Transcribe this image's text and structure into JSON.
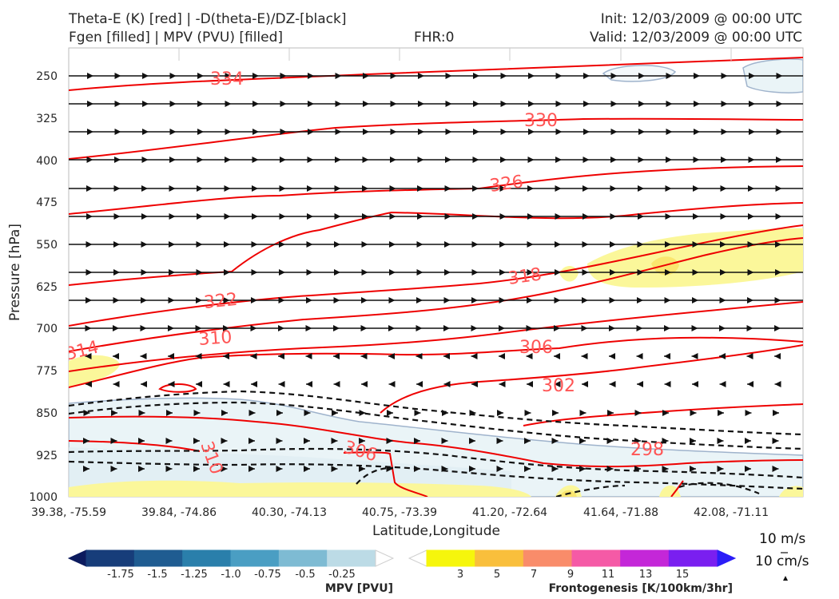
{
  "header": {
    "line1_left": "Theta-E (K) [red] | -D(theta-E)/DZ-[black]",
    "line2_left": "Fgen [filled] | MPV (PVU) [filled]",
    "fhr": "FHR:0",
    "init": "Init: 12/03/2009 @ 00:00 UTC",
    "valid": "Valid: 12/03/2009 @ 00:00 UTC"
  },
  "chart_data": {
    "type": "cross-section",
    "xlabel": "Latitude,Longitude",
    "ylabel": "Pressure [hPa]",
    "ylim": [
      1000,
      200
    ],
    "y_ticks": [
      250,
      325,
      400,
      475,
      550,
      625,
      700,
      775,
      850,
      925,
      1000
    ],
    "x_ticks": [
      "39.38, -75.59",
      "39.84, -74.86",
      "40.30, -74.13",
      "40.75, -73.39",
      "41.20, -72.64",
      "41.64, -71.88",
      "42.08, -71.11"
    ],
    "theta_e_contours": [
      {
        "label": "334",
        "level": 334
      },
      {
        "label": "330",
        "level": 330
      },
      {
        "label": "326",
        "level": 326
      },
      {
        "label": "322",
        "level": 322
      },
      {
        "label": "318",
        "level": 318
      },
      {
        "label": "314",
        "level": 314
      },
      {
        "label": "310",
        "level": 310
      },
      {
        "label": "306",
        "level": 306
      },
      {
        "label": "302",
        "level": 302
      },
      {
        "label": "298",
        "level": 298
      },
      {
        "label": "306",
        "level": 306
      },
      {
        "label": "310",
        "level": 310
      }
    ],
    "wind_reference": {
      "horizontal": "10 m/s",
      "vertical": "10 cm/s"
    },
    "mpv_colorbar": {
      "title": "MPV [PVU]",
      "ticks": [
        "-1.75",
        "-1.5",
        "-1.25",
        "-1.0",
        "-0.75",
        "-0.5",
        "-0.25"
      ],
      "colors": [
        "#0c1b5e",
        "#173d7a",
        "#1f5c91",
        "#2a7fab",
        "#4a9ec3",
        "#7ebbd3",
        "#bcdbe6",
        "#ffffff"
      ]
    },
    "fgen_colorbar": {
      "title": "Frontogenesis [K/100km/3hr]",
      "ticks": [
        "3",
        "5",
        "7",
        "9",
        "11",
        "13",
        "15"
      ],
      "colors": [
        "#ffffff",
        "#f6f60c",
        "#f9bf3c",
        "#f98c6a",
        "#f55aa6",
        "#c427d8",
        "#7a1ff0",
        "#2b1df7"
      ]
    }
  }
}
